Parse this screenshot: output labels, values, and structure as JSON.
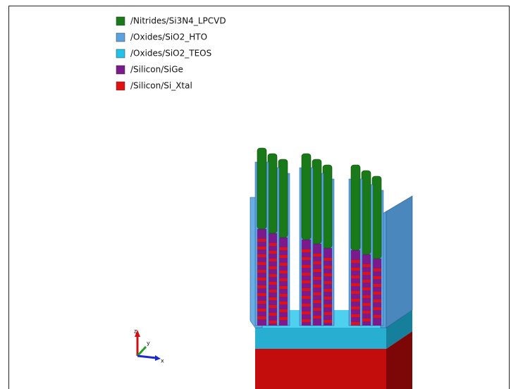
{
  "legend": [
    {
      "label": "/Nitrides/Si3N4_LPCVD",
      "color": "#1a7a1a"
    },
    {
      "label": "/Oxides/SiO2_HTO",
      "color": "#5ba3e0"
    },
    {
      "label": "/Oxides/SiO2_TEOS",
      "color": "#22c3ea"
    },
    {
      "label": "/Silicon/SiGe",
      "color": "#7a1a8c"
    },
    {
      "label": "/Silicon/Si_Xtal",
      "color": "#e01212"
    }
  ],
  "axes": {
    "z": "z",
    "y": "y",
    "x": "x"
  }
}
